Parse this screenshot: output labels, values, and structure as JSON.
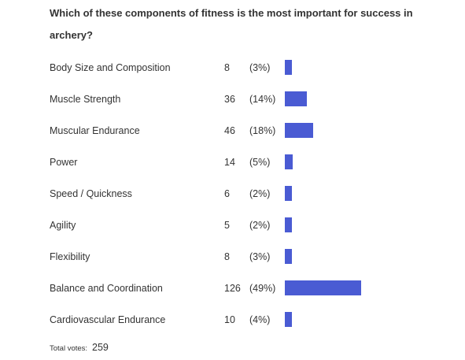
{
  "chart_data": {
    "type": "bar",
    "title": "Which of these components of fitness is the most important for success in archery?",
    "categories": [
      "Body Size and Composition",
      "Muscle Strength",
      "Muscular Endurance",
      "Power",
      "Speed / Quickness",
      "Agility",
      "Flexibility",
      "Balance and Coordination",
      "Cardiovascular Endurance"
    ],
    "counts": [
      8,
      36,
      46,
      14,
      6,
      5,
      8,
      126,
      10
    ],
    "values": [
      3,
      14,
      18,
      5,
      2,
      2,
      3,
      49,
      4
    ],
    "value_labels": [
      "(3%)",
      "(14%)",
      "(18%)",
      "(5%)",
      "(2%)",
      "(2%)",
      "(3%)",
      "(49%)",
      "(4%)"
    ],
    "color": "#4a5bd3",
    "total_label": "Total votes:",
    "total": 259
  }
}
